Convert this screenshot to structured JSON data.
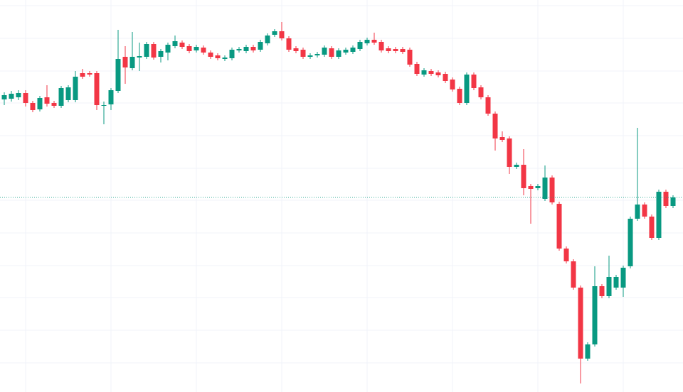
{
  "chart_data": {
    "type": "candlestick",
    "up_color": "#089981",
    "down_color": "#f23645",
    "grid": true,
    "grid_color": "#f0f3fa",
    "xlim": [
      -0.6,
      95.4
    ],
    "xticks": [
      3,
      15,
      27,
      39,
      51,
      63,
      75,
      87
    ],
    "ylim": [
      0,
      552
    ],
    "yticks": [
      544,
      498,
      452,
      407,
      361,
      315,
      270,
      224,
      178,
      133,
      87,
      41
    ],
    "open": [
      412,
      413,
      415,
      421,
      407,
      398,
      415,
      407,
      403,
      411,
      411,
      449,
      449,
      449,
      403,
      405,
      424,
      472,
      456,
      471,
      472,
      490,
      472,
      478,
      487,
      492,
      487,
      481,
      485,
      478,
      474,
      469,
      470,
      481,
      480,
      486,
      482,
      491,
      503,
      508,
      498,
      484,
      482,
      472,
      474,
      475,
      484,
      472,
      478,
      479,
      483,
      491,
      496,
      493,
      484,
      483,
      483,
      482,
      462,
      447,
      452,
      450,
      448,
      440,
      427,
      407,
      447,
      429,
      415,
      392,
      359,
      357,
      317,
      320,
      290,
      287,
      272,
      302,
      265,
      202,
      184,
      147,
      47,
      67,
      149,
      135,
      147,
      147,
      177,
      244,
      264,
      247,
      217,
      282,
      262
    ],
    "high": [
      422,
      424,
      425,
      425,
      410,
      417,
      432,
      410,
      431,
      432,
      452,
      455,
      452,
      452,
      409,
      428,
      510,
      487,
      507,
      492,
      493,
      493,
      483,
      492,
      502,
      495,
      490,
      489,
      488,
      481,
      477,
      474,
      485,
      486,
      489,
      489,
      496,
      505,
      511,
      521,
      501,
      487,
      485,
      477,
      479,
      488,
      487,
      484,
      485,
      488,
      496,
      499,
      506,
      496,
      487,
      486,
      486,
      485,
      465,
      456,
      455,
      453,
      451,
      443,
      430,
      450,
      450,
      432,
      418,
      395,
      367,
      360,
      323,
      342,
      293,
      293,
      319,
      305,
      268,
      205,
      187,
      150,
      70,
      177,
      152,
      192,
      165,
      178,
      247,
      372,
      267,
      250,
      285,
      285,
      277
    ],
    "low": [
      404,
      409,
      411,
      402,
      394,
      395,
      402,
      400,
      400,
      408,
      408,
      441,
      444,
      397,
      377,
      397,
      421,
      434,
      453,
      452,
      469,
      468,
      464,
      467,
      484,
      483,
      477,
      478,
      475,
      469,
      467,
      466,
      467,
      478,
      477,
      478,
      479,
      488,
      500,
      495,
      479,
      477,
      469,
      469,
      471,
      472,
      469,
      469,
      475,
      476,
      480,
      488,
      489,
      478,
      477,
      477,
      476,
      458,
      445,
      444,
      445,
      443,
      435,
      423,
      404,
      404,
      425,
      412,
      389,
      340,
      352,
      307,
      314,
      277,
      237,
      284,
      269,
      264,
      199,
      181,
      144,
      12,
      44,
      64,
      132,
      132,
      144,
      134,
      174,
      241,
      244,
      214,
      214,
      259,
      259
    ],
    "close": [
      418,
      420,
      421,
      407,
      397,
      414,
      406,
      403,
      428,
      429,
      444,
      444,
      447,
      404,
      404,
      425,
      469,
      457,
      472,
      473,
      490,
      471,
      480,
      489,
      494,
      486,
      480,
      486,
      478,
      472,
      470,
      471,
      482,
      483,
      486,
      481,
      493,
      502,
      508,
      498,
      482,
      480,
      472,
      474,
      476,
      485,
      472,
      481,
      482,
      485,
      493,
      496,
      492,
      481,
      480,
      480,
      479,
      461,
      448,
      453,
      448,
      446,
      438,
      426,
      407,
      447,
      428,
      415,
      392,
      357,
      355,
      317,
      320,
      287,
      286,
      290,
      302,
      267,
      202,
      184,
      147,
      47,
      67,
      149,
      135,
      162,
      162,
      175,
      244,
      264,
      247,
      217,
      282,
      262,
      274
    ]
  }
}
